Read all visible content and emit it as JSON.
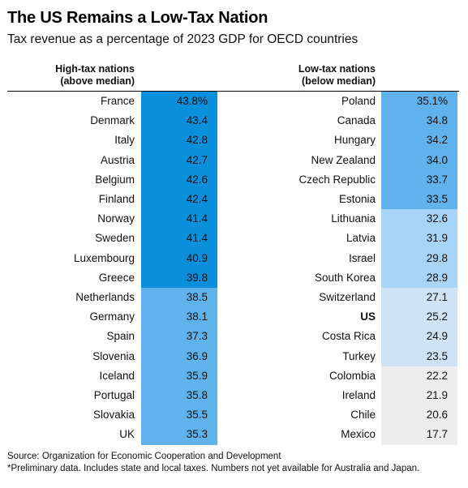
{
  "title": "The US Remains a Low-Tax Nation",
  "subtitle": "Tax revenue as a percentage of 2023 GDP for OECD countries",
  "headers": {
    "left": [
      "High-tax nations",
      "(above median)"
    ],
    "right": [
      "Low-tax nations",
      "(below median)"
    ]
  },
  "colors": {
    "tier1": "#0a8fdd",
    "tier2": "#5fb2ec",
    "tier3": "#a8d4f7",
    "tier4": "#cfe3f6",
    "tier5": "#ededed"
  },
  "source": "Source: Organization for Economic Cooperation and Development",
  "note": "*Preliminary data. Includes state and local taxes. Numbers not yet available for Australia and Japan.",
  "chart_data": {
    "type": "table",
    "title": "The US Remains a Low-Tax Nation",
    "subtitle": "Tax revenue as a percentage of 2023 GDP for OECD countries",
    "unit": "%",
    "groups": [
      {
        "name": "High-tax nations (above median)",
        "rows": [
          {
            "country": "France",
            "value": 43.8,
            "label": "43.8%",
            "tier": 1
          },
          {
            "country": "Denmark",
            "value": 43.4,
            "label": "43.4",
            "tier": 1
          },
          {
            "country": "Italy",
            "value": 42.8,
            "label": "42.8",
            "tier": 1
          },
          {
            "country": "Austria",
            "value": 42.7,
            "label": "42.7",
            "tier": 1
          },
          {
            "country": "Belgium",
            "value": 42.6,
            "label": "42.6",
            "tier": 1
          },
          {
            "country": "Finland",
            "value": 42.4,
            "label": "42.4",
            "tier": 1
          },
          {
            "country": "Norway",
            "value": 41.4,
            "label": "41.4",
            "tier": 1
          },
          {
            "country": "Sweden",
            "value": 41.4,
            "label": "41.4",
            "tier": 1
          },
          {
            "country": "Luxembourg",
            "value": 40.9,
            "label": "40.9",
            "tier": 1
          },
          {
            "country": "Greece",
            "value": 39.8,
            "label": "39.8",
            "tier": 1
          },
          {
            "country": "Netherlands",
            "value": 38.5,
            "label": "38.5",
            "tier": 2
          },
          {
            "country": "Germany",
            "value": 38.1,
            "label": "38.1",
            "tier": 2
          },
          {
            "country": "Spain",
            "value": 37.3,
            "label": "37.3",
            "tier": 2
          },
          {
            "country": "Slovenia",
            "value": 36.9,
            "label": "36.9",
            "tier": 2
          },
          {
            "country": "Iceland",
            "value": 35.9,
            "label": "35.9",
            "tier": 2
          },
          {
            "country": "Portugal",
            "value": 35.8,
            "label": "35.8",
            "tier": 2
          },
          {
            "country": "Slovakia",
            "value": 35.5,
            "label": "35.5",
            "tier": 2
          },
          {
            "country": "UK",
            "value": 35.3,
            "label": "35.3",
            "tier": 2
          }
        ]
      },
      {
        "name": "Low-tax nations (below median)",
        "rows": [
          {
            "country": "Poland",
            "value": 35.1,
            "label": "35.1%",
            "tier": 2
          },
          {
            "country": "Canada",
            "value": 34.8,
            "label": "34.8",
            "tier": 2
          },
          {
            "country": "Hungary",
            "value": 34.2,
            "label": "34.2",
            "tier": 2
          },
          {
            "country": "New Zealand",
            "value": 34.0,
            "label": "34.0",
            "tier": 2
          },
          {
            "country": "Czech Republic",
            "value": 33.7,
            "label": "33.7",
            "tier": 2
          },
          {
            "country": "Estonia",
            "value": 33.5,
            "label": "33.5",
            "tier": 2
          },
          {
            "country": "Lithuania",
            "value": 32.6,
            "label": "32.6",
            "tier": 3
          },
          {
            "country": "Latvia",
            "value": 31.9,
            "label": "31.9",
            "tier": 3
          },
          {
            "country": "Israel",
            "value": 29.8,
            "label": "29.8",
            "tier": 3
          },
          {
            "country": "South Korea",
            "value": 28.9,
            "label": "28.9",
            "tier": 3
          },
          {
            "country": "Switzerland",
            "value": 27.1,
            "label": "27.1",
            "tier": 4
          },
          {
            "country": "US",
            "value": 25.2,
            "label": "25.2",
            "tier": 4,
            "highlight": true
          },
          {
            "country": "Costa Rica",
            "value": 24.9,
            "label": "24.9",
            "tier": 4
          },
          {
            "country": "Turkey",
            "value": 23.5,
            "label": "23.5",
            "tier": 4
          },
          {
            "country": "Colombia",
            "value": 22.2,
            "label": "22.2",
            "tier": 5
          },
          {
            "country": "Ireland",
            "value": 21.9,
            "label": "21.9",
            "tier": 5
          },
          {
            "country": "Chile",
            "value": 20.6,
            "label": "20.6",
            "tier": 5
          },
          {
            "country": "Mexico",
            "value": 17.7,
            "label": "17.7",
            "tier": 5
          }
        ]
      }
    ]
  }
}
